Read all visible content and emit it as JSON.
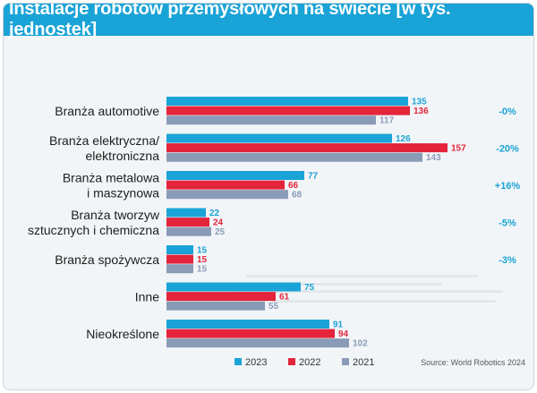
{
  "chart_data": {
    "type": "bar",
    "orientation": "horizontal",
    "title": "Instalacje robotów przemysłowych na świecie [w tys. jednostek]",
    "categories": [
      [
        "Branża automotive"
      ],
      [
        "Branża elektryczna/",
        "elektroniczna"
      ],
      [
        "Branża metalowa",
        "i maszynowa"
      ],
      [
        "Branża tworzyw",
        "sztucznych i chemiczna"
      ],
      [
        "Branża spożywcza"
      ],
      [
        "Inne"
      ],
      [
        "Nieokreślone"
      ]
    ],
    "series": [
      {
        "name": "2023",
        "color": "#1aa3d6",
        "values": [
          135,
          126,
          77,
          22,
          15,
          75,
          91
        ]
      },
      {
        "name": "2022",
        "color": "#e3243b",
        "values": [
          136,
          157,
          66,
          24,
          15,
          61,
          94
        ]
      },
      {
        "name": "2021",
        "color": "#8a9bb8",
        "values": [
          117,
          143,
          68,
          25,
          15,
          55,
          102
        ]
      }
    ],
    "changes": [
      "-0%",
      "-20%",
      "+16%",
      "-5%",
      "-3%",
      "",
      ""
    ],
    "xlim": [
      0,
      157
    ],
    "legend_position": "bottom",
    "source": "Source: World Robotics 2024"
  }
}
